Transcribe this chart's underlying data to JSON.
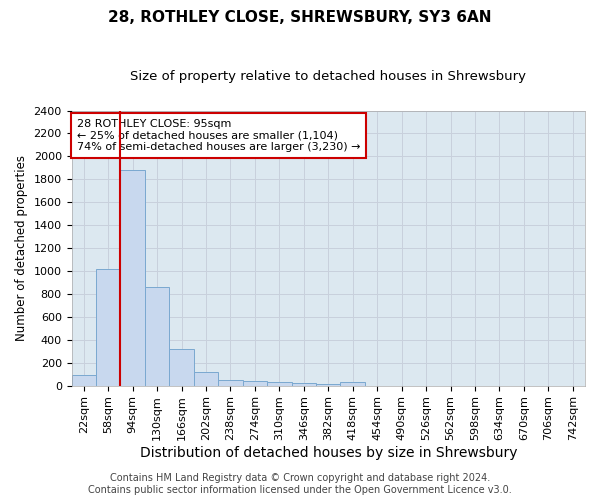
{
  "title": "28, ROTHLEY CLOSE, SHREWSBURY, SY3 6AN",
  "subtitle": "Size of property relative to detached houses in Shrewsbury",
  "xlabel": "Distribution of detached houses by size in Shrewsbury",
  "ylabel": "Number of detached properties",
  "footer1": "Contains HM Land Registry data © Crown copyright and database right 2024.",
  "footer2": "Contains public sector information licensed under the Open Government Licence v3.0.",
  "bin_labels": [
    "22sqm",
    "58sqm",
    "94sqm",
    "130sqm",
    "166sqm",
    "202sqm",
    "238sqm",
    "274sqm",
    "310sqm",
    "346sqm",
    "382sqm",
    "418sqm",
    "454sqm",
    "490sqm",
    "526sqm",
    "562sqm",
    "598sqm",
    "634sqm",
    "670sqm",
    "706sqm",
    "742sqm"
  ],
  "bar_values": [
    90,
    1020,
    1880,
    860,
    320,
    120,
    50,
    40,
    30,
    20,
    10,
    30,
    0,
    0,
    0,
    0,
    0,
    0,
    0,
    0,
    0
  ],
  "bar_color": "#c8d8ee",
  "bar_edgecolor": "#7aa8d0",
  "red_line_x": 1.5,
  "annotation_text": "28 ROTHLEY CLOSE: 95sqm\n← 25% of detached houses are smaller (1,104)\n74% of semi-detached houses are larger (3,230) →",
  "annotation_box_color": "#ffffff",
  "annotation_box_edgecolor": "#cc0000",
  "ylim": [
    0,
    2400
  ],
  "yticks": [
    0,
    200,
    400,
    600,
    800,
    1000,
    1200,
    1400,
    1600,
    1800,
    2000,
    2200,
    2400
  ],
  "grid_color": "#c8d0dc",
  "plot_bg_color": "#dce8f0",
  "fig_bg_color": "#ffffff",
  "title_fontsize": 11,
  "subtitle_fontsize": 9.5,
  "xlabel_fontsize": 10,
  "ylabel_fontsize": 8.5,
  "tick_fontsize": 8,
  "annotation_fontsize": 8,
  "footer_fontsize": 7
}
